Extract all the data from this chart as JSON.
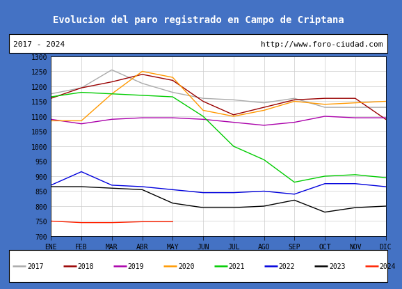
{
  "title": "Evolucion del paro registrado en Campo de Criptana",
  "subtitle_left": "2017 - 2024",
  "subtitle_right": "http://www.foro-ciudad.com",
  "title_bg": "#4472c4",
  "title_color": "white",
  "ylim": [
    700,
    1300
  ],
  "yticks": [
    700,
    750,
    800,
    850,
    900,
    950,
    1000,
    1050,
    1100,
    1150,
    1200,
    1250,
    1300
  ],
  "months": [
    "ENE",
    "FEB",
    "MAR",
    "ABR",
    "MAY",
    "JUN",
    "JUL",
    "AGO",
    "SEP",
    "OCT",
    "NOV",
    "DIC"
  ],
  "series": [
    {
      "year": "2017",
      "color": "#aaaaaa",
      "data": [
        1175,
        1195,
        1255,
        1210,
        1180,
        1160,
        1155,
        1145,
        1160,
        1130,
        1130,
        1130
      ]
    },
    {
      "year": "2018",
      "color": "#990000",
      "data": [
        1160,
        1195,
        1215,
        1240,
        1220,
        1150,
        1105,
        1130,
        1155,
        1160,
        1160,
        1090
      ]
    },
    {
      "year": "2019",
      "color": "#aa00aa",
      "data": [
        1090,
        1075,
        1090,
        1095,
        1095,
        1090,
        1080,
        1070,
        1080,
        1100,
        1095,
        1095
      ]
    },
    {
      "year": "2020",
      "color": "#ff9900",
      "data": [
        1085,
        1085,
        1175,
        1250,
        1230,
        1120,
        1100,
        1120,
        1150,
        1140,
        1145,
        1150
      ]
    },
    {
      "year": "2021",
      "color": "#00cc00",
      "data": [
        1165,
        1180,
        1175,
        1170,
        1165,
        1100,
        1000,
        955,
        880,
        900,
        905,
        895
      ]
    },
    {
      "year": "2022",
      "color": "#0000dd",
      "data": [
        870,
        915,
        870,
        865,
        855,
        845,
        845,
        850,
        840,
        875,
        875,
        865
      ]
    },
    {
      "year": "2023",
      "color": "#000000",
      "data": [
        865,
        865,
        860,
        855,
        810,
        795,
        795,
        800,
        820,
        780,
        795,
        800
      ]
    },
    {
      "year": "2024",
      "color": "#ff2200",
      "data": [
        750,
        745,
        745,
        748,
        748,
        null,
        null,
        null,
        null,
        null,
        null,
        null
      ]
    }
  ]
}
